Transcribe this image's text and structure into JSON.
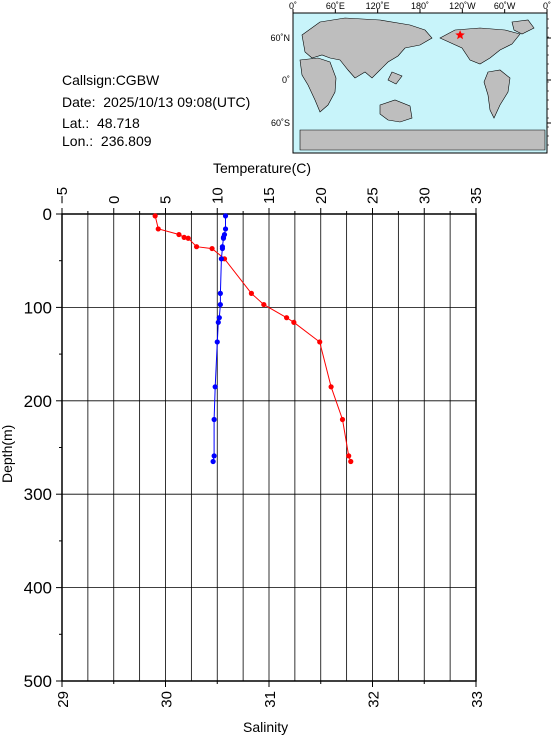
{
  "station": {
    "callsign": "Callsign:CGBW",
    "date": "Date:  2025/10/13 09:08(UTC)",
    "lat": "Lat.:  48.718",
    "lon": "Lon.:  236.809"
  },
  "map": {
    "top_labels": [
      "0˚",
      "60˚E",
      "120˚E",
      "180˚",
      "120˚W",
      "60˚W",
      "0˚"
    ],
    "lat_labels": [
      "60˚N",
      "0˚",
      "60˚S"
    ],
    "ocean_color": "#c8f4fa",
    "land_color": "#bebebe",
    "marker_color": "#ff0000",
    "marker_icon": "star-icon"
  },
  "chart_data": {
    "type": "line",
    "ylabel": "Depth(m)",
    "ylim": [
      0,
      500
    ],
    "y_inverted": true,
    "y_ticks": [
      "0",
      "100",
      "200",
      "300",
      "400",
      "500"
    ],
    "top_axis": {
      "label": "Temperature(C)",
      "lim": [
        -5,
        35
      ],
      "ticks": [
        "−5",
        "0",
        "5",
        "10",
        "15",
        "20",
        "25",
        "30",
        "35"
      ]
    },
    "bottom_axis": {
      "label": "Salinity",
      "lim": [
        29,
        33
      ],
      "ticks": [
        "29",
        "30",
        "31",
        "32",
        "33"
      ]
    },
    "grid": true,
    "series": [
      {
        "axis": "top",
        "color": "#ff0000",
        "points": [
          {
            "x": 4.0,
            "y": 2
          },
          {
            "x": 4.3,
            "y": 16
          },
          {
            "x": 6.3,
            "y": 22
          },
          {
            "x": 6.8,
            "y": 25
          },
          {
            "x": 7.2,
            "y": 26
          },
          {
            "x": 8.0,
            "y": 35
          },
          {
            "x": 9.5,
            "y": 37
          },
          {
            "x": 10.7,
            "y": 48
          },
          {
            "x": 13.3,
            "y": 85
          },
          {
            "x": 14.5,
            "y": 97
          },
          {
            "x": 16.7,
            "y": 111
          },
          {
            "x": 17.4,
            "y": 116
          },
          {
            "x": 19.9,
            "y": 137
          },
          {
            "x": 21.0,
            "y": 185
          },
          {
            "x": 22.1,
            "y": 220
          },
          {
            "x": 22.7,
            "y": 259
          },
          {
            "x": 22.9,
            "y": 265
          }
        ]
      },
      {
        "axis": "bottom",
        "color": "#0000ff",
        "points": [
          {
            "x": 30.58,
            "y": 2
          },
          {
            "x": 30.58,
            "y": 16
          },
          {
            "x": 30.57,
            "y": 22
          },
          {
            "x": 30.56,
            "y": 25
          },
          {
            "x": 30.56,
            "y": 26
          },
          {
            "x": 30.55,
            "y": 35
          },
          {
            "x": 30.55,
            "y": 37
          },
          {
            "x": 30.54,
            "y": 48
          },
          {
            "x": 30.53,
            "y": 85
          },
          {
            "x": 30.53,
            "y": 97
          },
          {
            "x": 30.52,
            "y": 111
          },
          {
            "x": 30.51,
            "y": 116
          },
          {
            "x": 30.5,
            "y": 137
          },
          {
            "x": 30.48,
            "y": 185
          },
          {
            "x": 30.47,
            "y": 220
          },
          {
            "x": 30.47,
            "y": 259
          },
          {
            "x": 30.46,
            "y": 265
          }
        ]
      }
    ]
  }
}
